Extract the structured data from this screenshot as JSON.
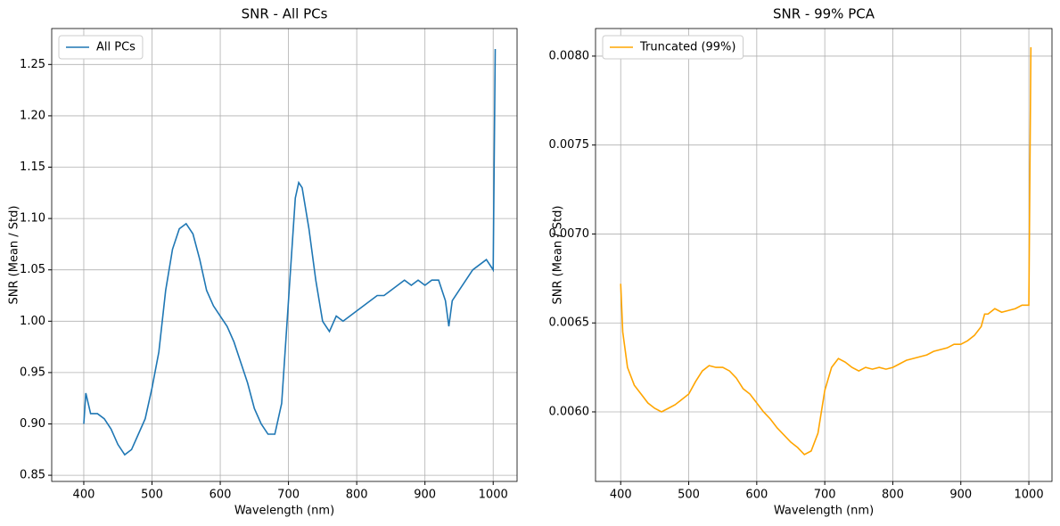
{
  "chart_data": [
    {
      "type": "line",
      "title": "SNR - All PCs",
      "x_label": "Wavelength (nm)",
      "y_label": "SNR (Mean / Std)",
      "x": [
        400,
        403,
        410,
        420,
        430,
        440,
        450,
        460,
        470,
        480,
        490,
        500,
        510,
        520,
        530,
        540,
        550,
        560,
        570,
        580,
        590,
        600,
        610,
        620,
        630,
        640,
        650,
        660,
        670,
        680,
        690,
        700,
        710,
        715,
        720,
        730,
        740,
        750,
        760,
        770,
        780,
        790,
        800,
        810,
        820,
        830,
        840,
        850,
        860,
        870,
        880,
        890,
        900,
        910,
        920,
        930,
        935,
        940,
        950,
        960,
        970,
        980,
        990,
        1000,
        1003
      ],
      "series": [
        {
          "name": "All PCs",
          "color": "#1f77b4",
          "values": [
            0.9,
            0.93,
            0.91,
            0.91,
            0.905,
            0.895,
            0.88,
            0.87,
            0.875,
            0.89,
            0.905,
            0.935,
            0.97,
            1.03,
            1.07,
            1.09,
            1.095,
            1.085,
            1.06,
            1.03,
            1.015,
            1.005,
            0.995,
            0.98,
            0.96,
            0.94,
            0.915,
            0.9,
            0.89,
            0.89,
            0.92,
            1.02,
            1.12,
            1.135,
            1.13,
            1.09,
            1.04,
            1.0,
            0.99,
            1.005,
            1.0,
            1.005,
            1.01,
            1.015,
            1.02,
            1.025,
            1.025,
            1.03,
            1.035,
            1.04,
            1.035,
            1.04,
            1.035,
            1.04,
            1.04,
            1.02,
            0.995,
            1.02,
            1.03,
            1.04,
            1.05,
            1.055,
            1.06,
            1.05,
            1.265
          ]
        }
      ],
      "xlim": [
        353,
        1035
      ],
      "ylim": [
        0.844,
        1.285
      ],
      "xticks": [
        400,
        500,
        600,
        700,
        800,
        900,
        1000
      ],
      "yticks": [
        0.85,
        {
          "value": 0.9,
          "label": "0.90"
        },
        0.95,
        {
          "value": 1.0,
          "label": "1.00"
        },
        1.05,
        {
          "value": 1.1,
          "label": "1.10"
        },
        1.15,
        {
          "value": 1.2,
          "label": "1.20"
        },
        1.25
      ],
      "grid": true,
      "legend": "upper-left"
    },
    {
      "type": "line",
      "title": "SNR - 99% PCA",
      "x_label": "Wavelength (nm)",
      "y_label": "SNR (Mean / Std)",
      "x": [
        400,
        403,
        410,
        420,
        430,
        440,
        450,
        460,
        470,
        480,
        490,
        500,
        510,
        520,
        530,
        540,
        550,
        560,
        570,
        580,
        590,
        600,
        610,
        620,
        630,
        640,
        650,
        660,
        670,
        680,
        690,
        700,
        710,
        720,
        730,
        740,
        750,
        760,
        770,
        780,
        790,
        800,
        810,
        820,
        830,
        840,
        850,
        860,
        870,
        880,
        890,
        900,
        910,
        920,
        930,
        935,
        940,
        950,
        960,
        970,
        980,
        990,
        1000,
        1003
      ],
      "series": [
        {
          "name": "Truncated (99%)",
          "color": "#ffa500",
          "values": [
            0.00672,
            0.00645,
            0.00625,
            0.00615,
            0.0061,
            0.00605,
            0.00602,
            0.006,
            0.00602,
            0.00604,
            0.00607,
            0.0061,
            0.00617,
            0.00623,
            0.00626,
            0.00625,
            0.00625,
            0.00623,
            0.00619,
            0.00613,
            0.0061,
            0.00605,
            0.006,
            0.00596,
            0.00591,
            0.00587,
            0.00583,
            0.0058,
            0.00576,
            0.00578,
            0.00588,
            0.00612,
            0.00625,
            0.0063,
            0.00628,
            0.00625,
            0.00623,
            0.00625,
            0.00624,
            0.00625,
            0.00624,
            0.00625,
            0.00627,
            0.00629,
            0.0063,
            0.00631,
            0.00632,
            0.00634,
            0.00635,
            0.00636,
            0.00638,
            0.00638,
            0.0064,
            0.00643,
            0.00648,
            0.00655,
            0.00655,
            0.00658,
            0.00656,
            0.00657,
            0.00658,
            0.0066,
            0.0066,
            0.00805
          ]
        }
      ],
      "xlim": [
        363,
        1034
      ],
      "ylim": [
        0.005609,
        0.008155
      ],
      "xticks": [
        400,
        500,
        600,
        700,
        800,
        900,
        1000
      ],
      "yticks": [
        {
          "value": 0.006,
          "label": "0.0060"
        },
        0.0065,
        {
          "value": 0.007,
          "label": "0.0070"
        },
        0.0075,
        {
          "value": 0.008,
          "label": "0.0080"
        }
      ],
      "grid": true,
      "legend": "upper-left"
    }
  ]
}
